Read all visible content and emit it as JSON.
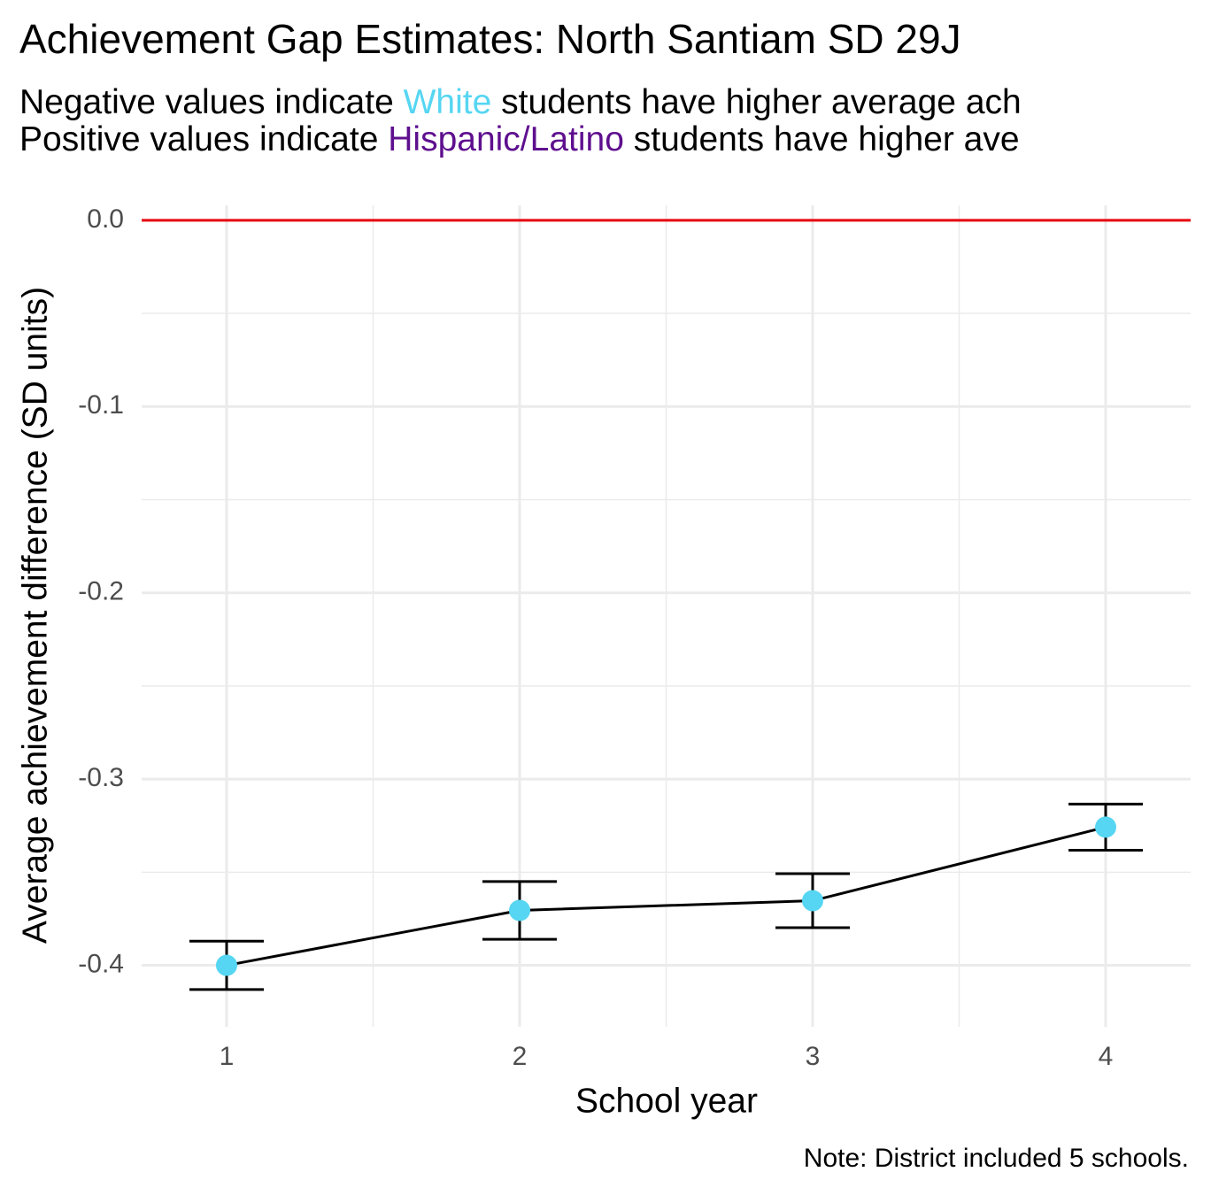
{
  "chart_data": {
    "type": "errorline",
    "title": "Achievement Gap Estimates: North Santiam SD 29J",
    "subtitle_lines": [
      [
        {
          "text": "Negative values indicate ",
          "color": "#000000"
        },
        {
          "text": "White",
          "color": "#56d6f2"
        },
        {
          "text": " students have higher average ach",
          "color": "#000000"
        }
      ],
      [
        {
          "text": "Positive values indicate ",
          "color": "#000000"
        },
        {
          "text": "Hispanic/Latino",
          "color": "#5e0f8e"
        },
        {
          "text": " students have higher ave",
          "color": "#000000"
        }
      ]
    ],
    "x_label": "School year",
    "y_label": "Average achievement difference (SD units)",
    "caption": "Note: District included 5 schools.",
    "x": [
      1,
      2,
      3,
      4
    ],
    "values": [
      -0.4,
      -0.3705,
      -0.3653,
      -0.3258
    ],
    "errors": [
      0.013,
      0.0155,
      0.0145,
      0.0124
    ],
    "point_color": "#56d6f2",
    "line_color": "#000000",
    "reference_line": {
      "y": 0,
      "color": "#e8000b"
    },
    "xlim": [
      0.71,
      4.29
    ],
    "ylim": [
      -0.433,
      0.008
    ],
    "xticks": [
      1,
      2,
      3,
      4
    ],
    "yticks": [
      {
        "value": 0,
        "label": "0.0"
      },
      -0.1,
      -0.2,
      -0.3,
      -0.4
    ],
    "xminorticks": [
      1.5,
      2.5,
      3.5
    ],
    "yminorticks": [
      -0.05,
      -0.15,
      -0.25,
      -0.35
    ],
    "grid": true
  }
}
